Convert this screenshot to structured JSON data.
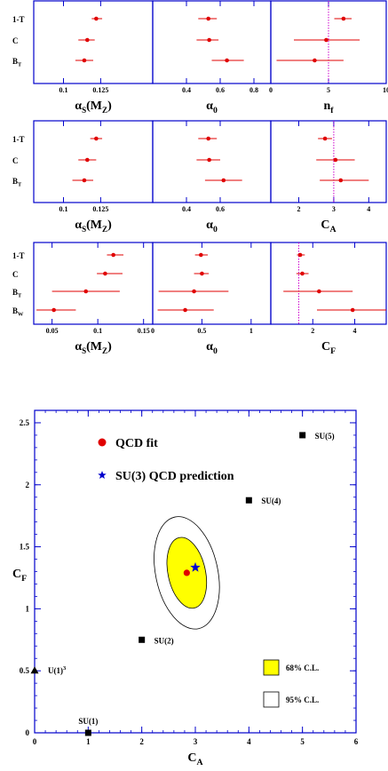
{
  "colors": {
    "frame": "#0000cc",
    "point": "#e00000",
    "reference": "#cc00cc",
    "ellipse68": "#ffff00",
    "star": "#0000cc",
    "marker": "#000000"
  },
  "chart_data": [
    {
      "type": "scatter",
      "subtype": "error-bar",
      "row": 1,
      "observables": [
        "1-T",
        "C",
        "B_T"
      ],
      "panels": [
        {
          "label": "αS(MZ)",
          "xlim": [
            0.08,
            0.16
          ],
          "ticks": [
            {
              "v": 0.1,
              "t": "0.1"
            },
            {
              "v": 0.125,
              "t": "0.125"
            }
          ],
          "points": [
            {
              "name": "1-T",
              "value": 0.122,
              "low": 0.119,
              "high": 0.126
            },
            {
              "name": "C",
              "value": 0.116,
              "low": 0.11,
              "high": 0.121
            },
            {
              "name": "B_T",
              "value": 0.114,
              "low": 0.108,
              "high": 0.12
            }
          ]
        },
        {
          "label": "α0",
          "xlim": [
            0.2,
            0.9
          ],
          "ticks": [
            {
              "v": 0.4,
              "t": "0.4"
            },
            {
              "v": 0.6,
              "t": "0.6"
            },
            {
              "v": 0.8,
              "t": "0.8"
            }
          ],
          "points": [
            {
              "name": "1-T",
              "value": 0.53,
              "low": 0.47,
              "high": 0.58
            },
            {
              "name": "C",
              "value": 0.535,
              "low": 0.46,
              "high": 0.59
            },
            {
              "name": "B_T",
              "value": 0.64,
              "low": 0.55,
              "high": 0.74
            }
          ]
        },
        {
          "label": "nf",
          "xlim": [
            0,
            10
          ],
          "ticks": [
            {
              "v": 0,
              "t": "0"
            },
            {
              "v": 5,
              "t": "5"
            },
            {
              "v": 10,
              "t": "10"
            }
          ],
          "reference": 5,
          "points": [
            {
              "name": "1-T",
              "value": 6.3,
              "low": 5.5,
              "high": 7.0
            },
            {
              "name": "C",
              "value": 4.8,
              "low": 2.0,
              "high": 7.7
            },
            {
              "name": "B_T",
              "value": 3.8,
              "low": 0.5,
              "high": 6.3
            }
          ]
        }
      ]
    },
    {
      "type": "scatter",
      "subtype": "error-bar",
      "row": 2,
      "observables": [
        "1-T",
        "C",
        "B_T"
      ],
      "panels": [
        {
          "label": "αS(MZ)",
          "xlim": [
            0.08,
            0.16
          ],
          "ticks": [
            {
              "v": 0.1,
              "t": "0.1"
            },
            {
              "v": 0.125,
              "t": "0.125"
            }
          ],
          "points": [
            {
              "name": "1-T",
              "value": 0.122,
              "low": 0.118,
              "high": 0.126
            },
            {
              "name": "C",
              "value": 0.116,
              "low": 0.11,
              "high": 0.122
            },
            {
              "name": "B_T",
              "value": 0.114,
              "low": 0.106,
              "high": 0.12
            }
          ]
        },
        {
          "label": "α0",
          "xlim": [
            0.2,
            0.9
          ],
          "ticks": [
            {
              "v": 0.4,
              "t": "0.4"
            },
            {
              "v": 0.6,
              "t": "0.6"
            }
          ],
          "points": [
            {
              "name": "1-T",
              "value": 0.53,
              "low": 0.47,
              "high": 0.58
            },
            {
              "name": "C",
              "value": 0.535,
              "low": 0.46,
              "high": 0.6
            },
            {
              "name": "B_T",
              "value": 0.62,
              "low": 0.51,
              "high": 0.73
            }
          ]
        },
        {
          "label": "CA",
          "xlim": [
            1.2,
            4.5
          ],
          "ticks": [
            {
              "v": 2,
              "t": "2"
            },
            {
              "v": 3,
              "t": "3"
            },
            {
              "v": 4,
              "t": "4"
            }
          ],
          "reference": 3,
          "points": [
            {
              "name": "1-T",
              "value": 2.75,
              "low": 2.55,
              "high": 2.95
            },
            {
              "name": "C",
              "value": 3.05,
              "low": 2.5,
              "high": 3.6
            },
            {
              "name": "B_T",
              "value": 3.2,
              "low": 2.6,
              "high": 4.0
            }
          ]
        }
      ]
    },
    {
      "type": "scatter",
      "subtype": "error-bar",
      "row": 3,
      "observables": [
        "1-T",
        "C",
        "B_T",
        "B_W"
      ],
      "panels": [
        {
          "label": "αS(MZ)",
          "xlim": [
            0.03,
            0.16
          ],
          "ticks": [
            {
              "v": 0.05,
              "t": "0.05"
            },
            {
              "v": 0.1,
              "t": "0.1"
            },
            {
              "v": 0.15,
              "t": "0.15"
            }
          ],
          "points": [
            {
              "name": "1-T",
              "value": 0.117,
              "low": 0.11,
              "high": 0.128
            },
            {
              "name": "C",
              "value": 0.108,
              "low": 0.099,
              "high": 0.127
            },
            {
              "name": "B_T",
              "value": 0.087,
              "low": 0.05,
              "high": 0.124
            },
            {
              "name": "B_W",
              "value": 0.052,
              "low": 0.033,
              "high": 0.076
            }
          ]
        },
        {
          "label": "α0",
          "xlim": [
            0,
            1.2
          ],
          "ticks": [
            {
              "v": 0,
              "t": "0"
            },
            {
              "v": 0.5,
              "t": "0.5"
            },
            {
              "v": 1,
              "t": "1"
            }
          ],
          "points": [
            {
              "name": "1-T",
              "value": 0.49,
              "low": 0.43,
              "high": 0.56
            },
            {
              "name": "C",
              "value": 0.5,
              "low": 0.42,
              "high": 0.57
            },
            {
              "name": "B_T",
              "value": 0.42,
              "low": 0.06,
              "high": 0.77
            },
            {
              "name": "B_W",
              "value": 0.33,
              "low": 0.05,
              "high": 0.62
            }
          ]
        },
        {
          "label": "CF",
          "xlim": [
            0,
            5.5
          ],
          "ticks": [
            {
              "v": 2,
              "t": "2"
            },
            {
              "v": 4,
              "t": "4"
            }
          ],
          "reference": 1.333,
          "points": [
            {
              "name": "1-T",
              "value": 1.4,
              "low": 1.25,
              "high": 1.62
            },
            {
              "name": "C",
              "value": 1.5,
              "low": 1.22,
              "high": 1.8
            },
            {
              "name": "B_T",
              "value": 2.3,
              "low": 0.6,
              "high": 3.9
            },
            {
              "name": "B_W",
              "value": 3.9,
              "low": 2.2,
              "high": 5.5
            }
          ]
        }
      ]
    },
    {
      "type": "scatter",
      "xlabel": "CA",
      "ylabel": "CF",
      "xlim": [
        0,
        6
      ],
      "ylim": [
        0,
        2.6
      ],
      "xticks": [
        0,
        1,
        2,
        3,
        4,
        5,
        6
      ],
      "yticks": [
        0,
        0.5,
        1,
        1.5,
        2,
        2.5
      ],
      "fit": {
        "CA": 2.84,
        "CF": 1.29
      },
      "prediction": {
        "CA": 3.0,
        "CF": 1.333
      },
      "ellipse68": {
        "rx": 0.35,
        "ry": 0.29,
        "angle_deg": -12
      },
      "ellipse95": {
        "rx": 0.58,
        "ry": 0.46,
        "angle_deg": -12
      },
      "groups": [
        {
          "name": "SU(1)",
          "CA": 1,
          "CF": 0
        },
        {
          "name": "SU(2)",
          "CA": 2,
          "CF": 0.75
        },
        {
          "name": "SU(4)",
          "CA": 4,
          "CF": 1.875
        },
        {
          "name": "SU(5)",
          "CA": 5,
          "CF": 2.4
        },
        {
          "name": "U(1)",
          "CA": 0,
          "CF": 0.5,
          "superscript": "3",
          "marker": "triangle"
        }
      ],
      "legend": {
        "fit": "QCD fit",
        "prediction": "SU(3) QCD prediction",
        "cl68": "68% C.L.",
        "cl95": "95% C.L."
      }
    }
  ]
}
